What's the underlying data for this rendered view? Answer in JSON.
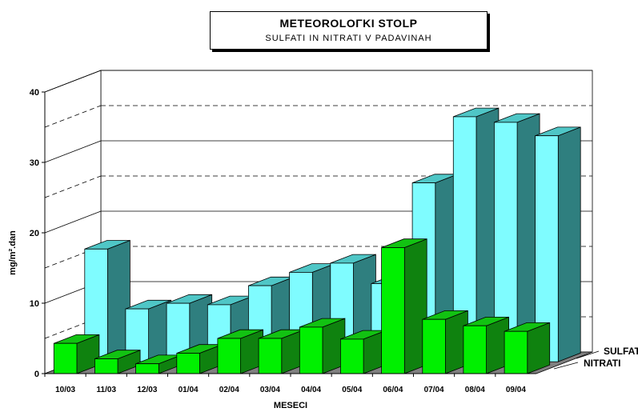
{
  "chart_data": {
    "type": "bar",
    "title": "METEOROLOΓKI STOLP",
    "subtitle": "SULFATI IN NITRATI V PADAVINAH",
    "xlabel": "MESECI",
    "ylabel": "mg/m².dan",
    "ylim": [
      0,
      40
    ],
    "yticks": [
      "0",
      "10",
      "20",
      "30",
      "40"
    ],
    "categories": [
      "10/03",
      "11/03",
      "12/03",
      "01/04",
      "02/04",
      "03/04",
      "04/04",
      "05/04",
      "06/04",
      "07/04",
      "08/04",
      "09/04"
    ],
    "series": [
      {
        "name": "SULFATI",
        "values": [
          16.0,
          7.5,
          8.3,
          8.1,
          10.8,
          12.7,
          14.0,
          11.1,
          25.4,
          34.8,
          34.0,
          32.1
        ]
      },
      {
        "name": "NITRATI",
        "values": [
          4.3,
          2.1,
          1.4,
          2.9,
          5.0,
          5.0,
          6.6,
          4.9,
          17.9,
          7.7,
          6.8,
          6.0
        ]
      }
    ],
    "colors": {
      "SULFATI": {
        "front": "#7ffcff",
        "top": "#4fc6c6",
        "side": "#2f7f7f"
      },
      "NITRATI": {
        "front": "#00f000",
        "top": "#12c212",
        "side": "#0f820f"
      },
      "wall": "#ffffff",
      "floor": "#808080"
    },
    "grid": "dashed",
    "legend": "right"
  }
}
